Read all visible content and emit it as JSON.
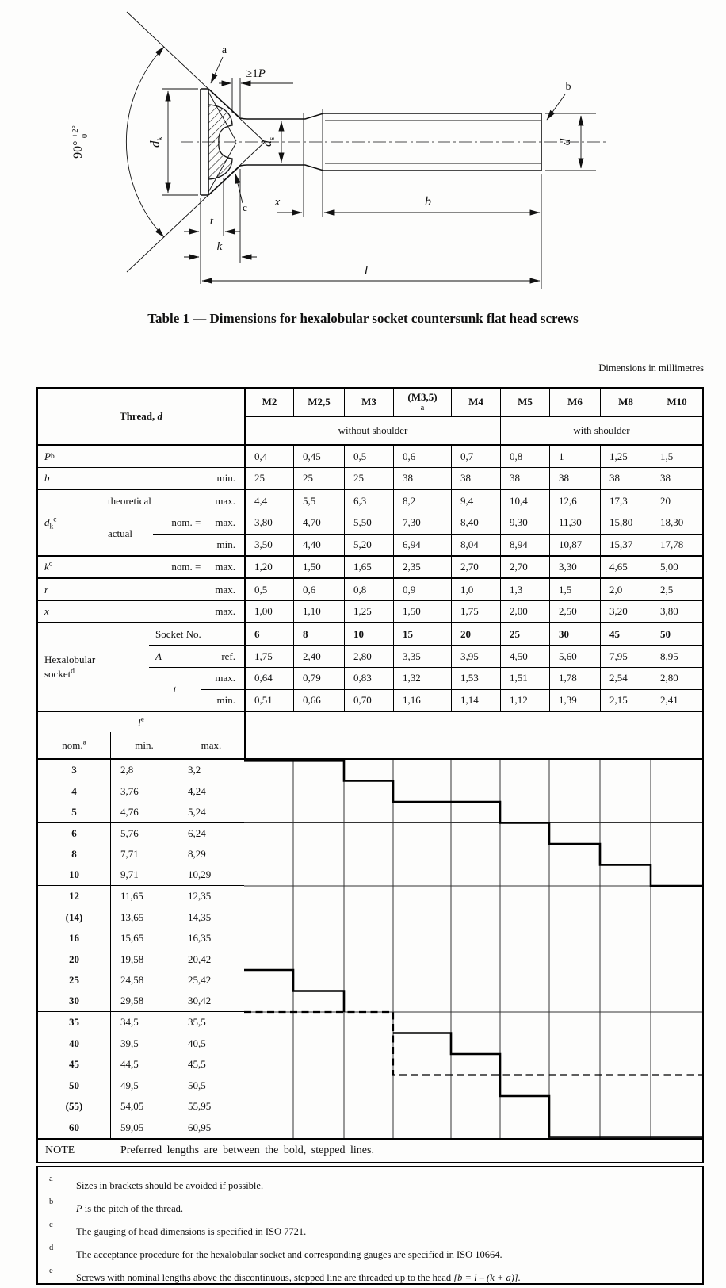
{
  "title": "Table 1 — Dimensions for hexalobular socket countersunk flat head screws",
  "units_note": "Dimensions in millimetres",
  "figure": {
    "a": "a",
    "b_ref": "b",
    "c": "c",
    "ge1p_pre": "≥1",
    "ge1p_sym": "P",
    "dk_sym": "d",
    "dk_sub": "k",
    "ds_sym": "d",
    "ds_sub": "s",
    "x": "x",
    "b": "b",
    "l": "l",
    "t": "t",
    "k": "k",
    "d": "d",
    "angle": "90°",
    "tol_plus": "+2°",
    "tol_zero": "0"
  },
  "table": {
    "labels": {
      "thread": "Thread,",
      "thread_sym": "d",
      "p": "P",
      "p_sup": "b",
      "b": "b",
      "min": "min.",
      "max": "max.",
      "dk": "d",
      "dk_sub": "k",
      "dk_sup": "c",
      "theoretical": "theoretical",
      "actual": "actual",
      "nom_eq": "nom. =",
      "k": "k",
      "k_sup": "c",
      "r": "r",
      "x": "x",
      "hex1": "Hexalobular",
      "hex2": "socket",
      "hex_sup": "d",
      "socket_no": "Socket No.",
      "A": "A",
      "ref": "ref.",
      "t": "t",
      "l": "l",
      "l_sup": "e",
      "nom": "nom.",
      "nom_sup": "a",
      "without": "without shoulder",
      "with": "with shoulder"
    },
    "columns": [
      "M2",
      "M2,5",
      "M3",
      "(M3,5)",
      "M4",
      "M5",
      "M6",
      "M8",
      "M10"
    ],
    "col_m35_sup": "a",
    "rows": [
      {
        "name": "P_pitch",
        "values": [
          "0,4",
          "0,45",
          "0,5",
          "0,6",
          "0,7",
          "0,8",
          "1",
          "1,25",
          "1,5"
        ]
      },
      {
        "name": "b_min",
        "values": [
          "25",
          "25",
          "25",
          "38",
          "38",
          "38",
          "38",
          "38",
          "38"
        ]
      },
      {
        "name": "dk_theoretical_max",
        "values": [
          "4,4",
          "5,5",
          "6,3",
          "8,2",
          "9,4",
          "10,4",
          "12,6",
          "17,3",
          "20"
        ]
      },
      {
        "name": "dk_actual_nom_max",
        "values": [
          "3,80",
          "4,70",
          "5,50",
          "7,30",
          "8,40",
          "9,30",
          "11,30",
          "15,80",
          "18,30"
        ]
      },
      {
        "name": "dk_actual_min",
        "values": [
          "3,50",
          "4,40",
          "5,20",
          "6,94",
          "8,04",
          "8,94",
          "10,87",
          "15,37",
          "17,78"
        ]
      },
      {
        "name": "k_nom_max",
        "values": [
          "1,20",
          "1,50",
          "1,65",
          "2,35",
          "2,70",
          "2,70",
          "3,30",
          "4,65",
          "5,00"
        ]
      },
      {
        "name": "r_max",
        "values": [
          "0,5",
          "0,6",
          "0,8",
          "0,9",
          "1,0",
          "1,3",
          "1,5",
          "2,0",
          "2,5"
        ]
      },
      {
        "name": "x_max",
        "values": [
          "1,00",
          "1,10",
          "1,25",
          "1,50",
          "1,75",
          "2,00",
          "2,50",
          "3,20",
          "3,80"
        ]
      },
      {
        "name": "socket_no",
        "values": [
          "6",
          "8",
          "10",
          "15",
          "20",
          "25",
          "30",
          "45",
          "50"
        ]
      },
      {
        "name": "A_ref",
        "values": [
          "1,75",
          "2,40",
          "2,80",
          "3,35",
          "3,95",
          "4,50",
          "5,60",
          "7,95",
          "8,95"
        ]
      },
      {
        "name": "t_max",
        "values": [
          "0,64",
          "0,79",
          "0,83",
          "1,32",
          "1,53",
          "1,51",
          "1,78",
          "2,54",
          "2,80"
        ]
      },
      {
        "name": "t_min",
        "values": [
          "0,51",
          "0,66",
          "0,70",
          "1,16",
          "1,14",
          "1,12",
          "1,39",
          "2,15",
          "2,41"
        ]
      }
    ],
    "length_rows": [
      {
        "nom": "3",
        "min": "2,8",
        "max": "3,2"
      },
      {
        "nom": "4",
        "min": "3,76",
        "max": "4,24"
      },
      {
        "nom": "5",
        "min": "4,76",
        "max": "5,24"
      },
      {
        "nom": "6",
        "min": "5,76",
        "max": "6,24"
      },
      {
        "nom": "8",
        "min": "7,71",
        "max": "8,29"
      },
      {
        "nom": "10",
        "min": "9,71",
        "max": "10,29"
      },
      {
        "nom": "12",
        "min": "11,65",
        "max": "12,35"
      },
      {
        "nom": "(14)",
        "min": "13,65",
        "max": "14,35"
      },
      {
        "nom": "16",
        "min": "15,65",
        "max": "16,35"
      },
      {
        "nom": "20",
        "min": "19,58",
        "max": "20,42"
      },
      {
        "nom": "25",
        "min": "24,58",
        "max": "25,42"
      },
      {
        "nom": "30",
        "min": "29,58",
        "max": "30,42"
      },
      {
        "nom": "35",
        "min": "34,5",
        "max": "35,5"
      },
      {
        "nom": "40",
        "min": "39,5",
        "max": "40,5"
      },
      {
        "nom": "45",
        "min": "44,5",
        "max": "45,5"
      },
      {
        "nom": "50",
        "min": "49,5",
        "max": "50,5"
      },
      {
        "nom": "(55)",
        "min": "54,05",
        "max": "55,95"
      },
      {
        "nom": "60",
        "min": "59,05",
        "max": "60,95"
      }
    ],
    "preferred_length_chart": {
      "columns": [
        "M2",
        "M2,5",
        "M3",
        "(M3,5)",
        "M4",
        "M5",
        "M6",
        "M8",
        "M10"
      ],
      "min_preferred": [
        "3",
        "3",
        "4",
        "5",
        "5",
        "6",
        "8",
        "10",
        "12"
      ],
      "max_preferred": [
        "20",
        "25",
        "30",
        "35",
        "40",
        "50",
        "60",
        "60",
        "60"
      ],
      "threaded_above": [
        "30",
        "30",
        "30",
        "45",
        "45",
        "45",
        "45",
        "45",
        "45"
      ]
    },
    "note_label": "NOTE",
    "note_text": "Preferred lengths are between the bold, stepped lines.",
    "footnotes": [
      {
        "key": "a",
        "text": "Sizes in brackets should be avoided if possible."
      },
      {
        "key": "b",
        "sym": "P",
        "text": " is the pitch of the thread."
      },
      {
        "key": "c",
        "text": "The gauging of head dimensions is specified in ISO 7721."
      },
      {
        "key": "d",
        "text": "The acceptance procedure for the hexalobular socket and corresponding gauges are specified in ISO 10664."
      },
      {
        "key": "e",
        "text": "Screws with nominal lengths above the discontinuous, stepped line are threaded up to the head ",
        "formula": "[b = l – (k + a)]."
      }
    ]
  }
}
